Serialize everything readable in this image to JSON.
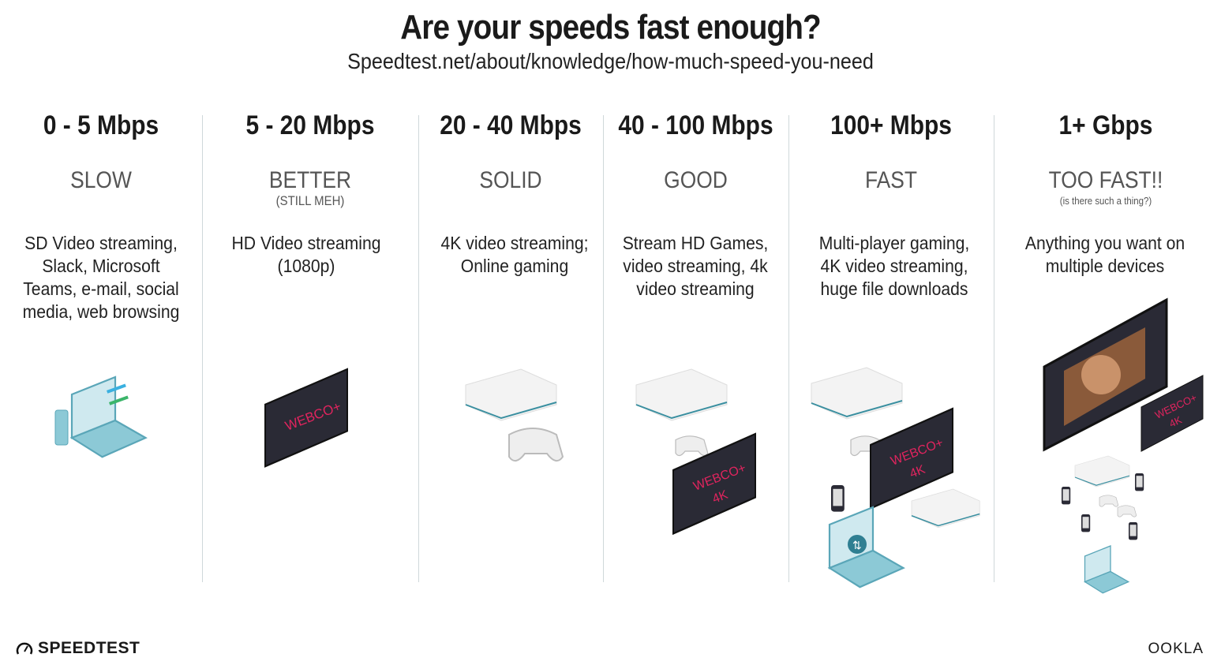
{
  "header": {
    "title": "Are your speeds fast enough?",
    "source": "Speedtest.net/about/knowledge/how-much-speed-you-need"
  },
  "tiers": [
    {
      "range": "0 - 5 Mbps",
      "label": "SLOW",
      "sublabel": "",
      "description": "SD Video streaming, Slack, Microsoft Teams, e-mail, social media, web browsing",
      "illustration": "laptop-and-phone"
    },
    {
      "range": "5 - 20 Mbps",
      "label": "BETTER",
      "sublabel": "(STILL MEH)",
      "description": "HD Video streaming (1080p)",
      "illustration": "tv"
    },
    {
      "range": "20 - 40 Mbps",
      "label": "SOLID",
      "sublabel": "",
      "description": "4K video streaming; Online gaming",
      "illustration": "game-console-and-controller"
    },
    {
      "range": "40 - 100 Mbps",
      "label": "GOOD",
      "sublabel": "",
      "description": "Stream HD Games, video streaming, 4k video streaming",
      "illustration": "console-controller-4k-tv"
    },
    {
      "range": "100+ Mbps",
      "label": "FAST",
      "sublabel": "",
      "description": "Multi-player gaming, 4K video streaming, huge file downloads",
      "illustration": "console-4k-tv-phone-laptop-download"
    },
    {
      "range": "1+ Gbps",
      "label": "TOO FAST!!",
      "sublabel": "(is there such a thing?)",
      "description": "Anything you want on multiple devices",
      "illustration": "multiple-devices-large-tv"
    }
  ],
  "tv_brand": "WEBCO+",
  "tv_4k": "4K",
  "footer": {
    "left_logo": "SPEEDTEST",
    "right_logo": "OOKLA"
  },
  "colors": {
    "tv": "#2a2a35",
    "tv_text": "#e0245e",
    "console": "#f2f2f2",
    "console_stripe": "#3a8fa0",
    "laptop": "#8cc9d6",
    "divider": "#cfd8da"
  }
}
